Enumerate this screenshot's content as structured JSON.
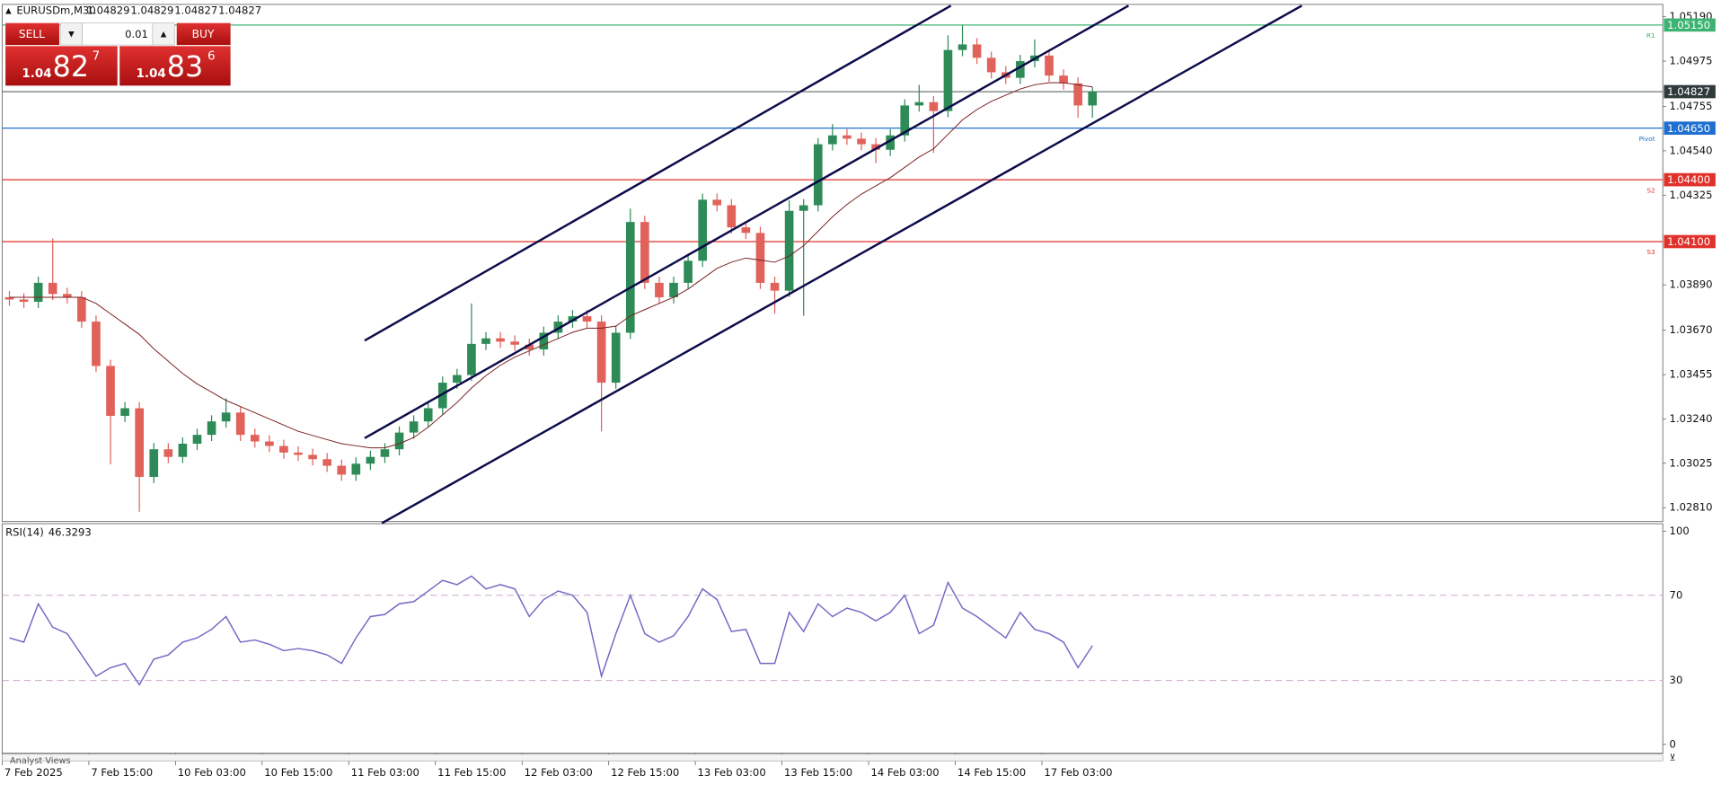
{
  "chart_data": {
    "type": "candlestick",
    "symbol": "EURUSDm,M30",
    "ohlc": [
      "1.04829",
      "1.04829",
      "1.04827",
      "1.04827"
    ],
    "up_color": "#2e8b57",
    "down_color": "#e0625a",
    "xlim": [
      -0.5,
      114.5
    ],
    "xticks": [
      {
        "value": -0.5,
        "label": "7 Feb 2025"
      },
      {
        "value": 5.5,
        "label": "7 Feb 15:00"
      },
      {
        "value": 11.5,
        "label": "10 Feb 03:00"
      },
      {
        "value": 17.5,
        "label": "10 Feb 15:00"
      },
      {
        "value": 23.5,
        "label": "11 Feb 03:00"
      },
      {
        "value": 29.5,
        "label": "11 Feb 15:00"
      },
      {
        "value": 35.5,
        "label": "12 Feb 03:00"
      },
      {
        "value": 41.5,
        "label": "12 Feb 15:00"
      },
      {
        "value": 47.5,
        "label": "13 Feb 03:00"
      },
      {
        "value": 53.5,
        "label": "13 Feb 15:00"
      },
      {
        "value": 59.5,
        "label": "14 Feb 03:00"
      },
      {
        "value": 65.5,
        "label": "14 Feb 15:00"
      },
      {
        "value": 71.5,
        "label": "17 Feb 03:00"
      }
    ],
    "ylim": [
      1.0273,
      1.0525
    ],
    "yticks": [
      {
        "value": 1.0519,
        "label": "1.05190"
      },
      {
        "value": 1.04975,
        "label": "1.04975"
      },
      {
        "value": 1.04755,
        "label": "1.04755"
      },
      {
        "value": 1.0454,
        "label": "1.04540"
      },
      {
        "value": 1.04325,
        "label": "1.04325"
      },
      {
        "value": 1.0389,
        "label": "1.03890"
      },
      {
        "value": 1.0367,
        "label": "1.03670"
      },
      {
        "value": 1.03455,
        "label": "1.03455"
      },
      {
        "value": 1.0324,
        "label": "1.03240"
      },
      {
        "value": 1.03025,
        "label": "1.03025"
      },
      {
        "value": 1.0281,
        "label": "1.02810"
      }
    ],
    "open": [
      1.0383,
      1.03819,
      1.03808,
      1.039,
      1.03846,
      1.0383,
      1.03712,
      1.03497,
      1.03255,
      1.03292,
      1.02959,
      1.03093,
      1.03056,
      1.0312,
      1.03163,
      1.03228,
      1.03271,
      1.03163,
      1.03131,
      1.03109,
      1.03077,
      1.03066,
      1.03045,
      1.03013,
      1.0297,
      1.03023,
      1.03056,
      1.03093,
      1.03174,
      1.03228,
      1.03292,
      1.03416,
      1.03453,
      1.03604,
      1.03631,
      1.03615,
      1.036,
      1.03577,
      1.03658,
      1.03712,
      1.03738,
      1.03712,
      1.03416,
      1.03658,
      1.04195,
      1.039,
      1.0383,
      1.039,
      1.04007,
      1.04303,
      1.04276,
      1.04169,
      1.04142,
      1.039,
      1.03862,
      1.04249,
      1.04276,
      1.04572,
      1.04615,
      1.04599,
      1.04572,
      1.04545,
      1.04615,
      1.0476,
      1.04776,
      1.04733,
      1.05029,
      1.05056,
      1.04991,
      1.04921,
      1.04894,
      1.04975,
      1.05002,
      1.04905,
      1.04867,
      1.0476
    ],
    "high": [
      1.0386,
      1.03849,
      1.0393,
      1.04115,
      1.03876,
      1.0386,
      1.03742,
      1.03527,
      1.03322,
      1.03322,
      1.03123,
      1.03123,
      1.0315,
      1.03193,
      1.03258,
      1.0334,
      1.03301,
      1.03193,
      1.03161,
      1.03139,
      1.03107,
      1.03096,
      1.03075,
      1.03043,
      1.03053,
      1.03086,
      1.03123,
      1.03204,
      1.03258,
      1.03322,
      1.03446,
      1.03483,
      1.038,
      1.03661,
      1.03661,
      1.03645,
      1.0363,
      1.03688,
      1.03742,
      1.03768,
      1.03768,
      1.03742,
      1.03688,
      1.0426,
      1.04225,
      1.0393,
      1.0393,
      1.04037,
      1.04333,
      1.04333,
      1.04306,
      1.04199,
      1.04172,
      1.0393,
      1.043,
      1.04306,
      1.04602,
      1.0467,
      1.04645,
      1.04629,
      1.04602,
      1.04645,
      1.0479,
      1.0486,
      1.04806,
      1.051,
      1.0515,
      1.05086,
      1.05021,
      1.04951,
      1.05005,
      1.0508,
      1.05032,
      1.04935,
      1.04897,
      1.0485
    ],
    "low": [
      1.03789,
      1.03778,
      1.03778,
      1.03816,
      1.038,
      1.03682,
      1.03467,
      1.0302,
      1.03225,
      1.0279,
      1.02929,
      1.03026,
      1.03026,
      1.0309,
      1.03133,
      1.03198,
      1.03133,
      1.03101,
      1.03079,
      1.03047,
      1.03036,
      1.03015,
      1.02983,
      1.0294,
      1.0294,
      1.02993,
      1.03026,
      1.03063,
      1.03144,
      1.03198,
      1.03262,
      1.03386,
      1.03423,
      1.03574,
      1.03585,
      1.0357,
      1.03547,
      1.03547,
      1.03628,
      1.03682,
      1.03682,
      1.0318,
      1.03386,
      1.03628,
      1.0387,
      1.038,
      1.038,
      1.0387,
      1.03977,
      1.04246,
      1.04139,
      1.04112,
      1.0387,
      1.0375,
      1.03832,
      1.0374,
      1.04246,
      1.04542,
      1.04569,
      1.04542,
      1.0448,
      1.04515,
      1.04585,
      1.0473,
      1.0453,
      1.04703,
      1.04999,
      1.04961,
      1.04891,
      1.04864,
      1.04864,
      1.04945,
      1.04875,
      1.04837,
      1.047,
      1.047
    ],
    "close": [
      1.03819,
      1.03808,
      1.039,
      1.03846,
      1.0383,
      1.03712,
      1.03497,
      1.03255,
      1.03292,
      1.02959,
      1.03093,
      1.03056,
      1.0312,
      1.03163,
      1.03228,
      1.03271,
      1.03163,
      1.03131,
      1.03109,
      1.03077,
      1.03066,
      1.03045,
      1.03013,
      1.0297,
      1.03023,
      1.03056,
      1.03093,
      1.03174,
      1.03228,
      1.03292,
      1.03416,
      1.03453,
      1.03604,
      1.03631,
      1.03615,
      1.036,
      1.03577,
      1.03658,
      1.03712,
      1.03738,
      1.03712,
      1.03416,
      1.03658,
      1.04195,
      1.039,
      1.0383,
      1.039,
      1.04007,
      1.04303,
      1.04276,
      1.04169,
      1.04142,
      1.039,
      1.03862,
      1.04249,
      1.04276,
      1.04572,
      1.04615,
      1.04599,
      1.04572,
      1.04545,
      1.04615,
      1.0476,
      1.04776,
      1.04733,
      1.05029,
      1.05056,
      1.04991,
      1.04921,
      1.04894,
      1.04975,
      1.05002,
      1.04905,
      1.04867,
      1.0476,
      1.04827
    ],
    "moving_average": {
      "color": "#7a1f1f",
      "values": [
        1.0383,
        1.0383,
        1.0383,
        1.0383,
        1.0383,
        1.0383,
        1.038,
        1.0375,
        1.037,
        1.0365,
        1.0358,
        1.0352,
        1.0346,
        1.0341,
        1.0337,
        1.0333,
        1.033,
        1.0327,
        1.0324,
        1.0321,
        1.0318,
        1.0316,
        1.0314,
        1.0312,
        1.0311,
        1.031,
        1.031,
        1.0312,
        1.0315,
        1.032,
        1.0326,
        1.0332,
        1.0339,
        1.0345,
        1.035,
        1.0354,
        1.0357,
        1.036,
        1.0363,
        1.0366,
        1.0368,
        1.0368,
        1.0369,
        1.0374,
        1.0377,
        1.038,
        1.0383,
        1.0387,
        1.0392,
        1.0397,
        1.04,
        1.0402,
        1.0401,
        1.04,
        1.0403,
        1.0408,
        1.0415,
        1.0422,
        1.0428,
        1.0433,
        1.0437,
        1.0441,
        1.0446,
        1.0451,
        1.0455,
        1.0462,
        1.0469,
        1.0474,
        1.0478,
        1.0481,
        1.0484,
        1.0486,
        1.0487,
        1.0487,
        1.0486,
        1.0485
      ]
    },
    "trendline_color": "#0b0b4a",
    "trendlines": [
      {
        "x": [
          24.6,
          65.2
        ],
        "y": [
          1.0362,
          1.05244
        ]
      },
      {
        "x": [
          24.6,
          77.5
        ],
        "y": [
          1.03147,
          1.05244
        ]
      },
      {
        "x": [
          25.8,
          89.5
        ],
        "y": [
          1.02735,
          1.05244
        ]
      }
    ],
    "levels": [
      {
        "value": 1.0515,
        "label": "1.05150",
        "name": "R1",
        "color": "#3cb371"
      },
      {
        "value": 1.04827,
        "label": "1.04827",
        "color": "#2f3b3b"
      },
      {
        "value": 1.0465,
        "label": "1.04650",
        "name": "Pivot",
        "color": "#1f6fd1"
      },
      {
        "value": 1.044,
        "label": "1.04400",
        "name": "S2",
        "color": "#e0312b"
      },
      {
        "value": 1.041,
        "label": "1.04100",
        "name": "S3",
        "color": "#e0312b"
      }
    ],
    "indicator": {
      "name": "RSI(14)",
      "color": "#7467c4",
      "ylim": [
        0,
        100
      ],
      "yticks": [
        0,
        30,
        70,
        100
      ],
      "values": [
        50,
        48,
        66,
        55,
        52,
        42,
        32,
        36,
        38,
        28,
        40,
        42,
        48,
        50,
        54,
        60,
        48,
        49,
        47,
        44,
        45,
        44,
        42,
        38,
        50,
        60,
        61,
        66,
        67,
        72,
        77,
        75,
        79,
        73,
        75,
        73,
        60,
        68,
        72,
        70,
        62,
        32,
        52,
        70,
        52,
        48,
        51,
        60,
        73,
        68,
        53,
        54,
        38,
        38,
        62,
        53,
        66,
        60,
        64,
        62,
        58,
        62,
        70,
        52,
        56,
        76,
        64,
        60,
        55,
        50,
        62,
        54,
        52,
        48,
        36,
        46.3293
      ]
    }
  },
  "trade_panel": {
    "sell": "SELL",
    "buy": "BUY",
    "lot": "0.01",
    "bid": {
      "big": "1.04",
      "main": "82",
      "sup": "7"
    },
    "ask": {
      "big": "1.04",
      "main": "83",
      "sup": "6"
    }
  },
  "footer_tab": "Analyst Views"
}
